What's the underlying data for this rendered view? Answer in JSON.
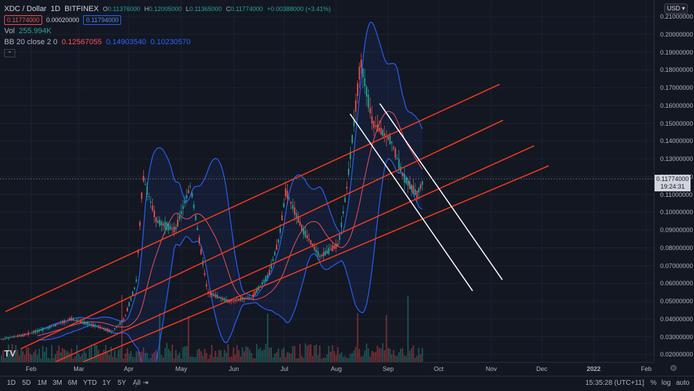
{
  "header": {
    "symbol": "XDC / Dollar",
    "interval": "1D",
    "exchange": "BITFINEX",
    "ohlc": {
      "o_label": "O",
      "o": "0.11376000",
      "h_label": "H",
      "h": "0.12005000",
      "l_label": "L",
      "l": "0.11365000",
      "c_label": "C",
      "c": "0.11774000",
      "change": "+0.00388000 (+3.41%)"
    },
    "bid": "0.11774000",
    "spread": "0.00020000",
    "ask": "0.11794000",
    "vol_label": "Vol",
    "vol_value": "255.994K",
    "bb_label": "BB 20 close 2 0",
    "bb_basis": "0.12567055",
    "bb_upper": "0.14903540",
    "bb_lower": "0.10230570",
    "collapse_icon": "chevron-up-icon"
  },
  "currency_button": "USD",
  "current_price": {
    "value": "0.11774000",
    "countdown": "19:24:31"
  },
  "price_axis": {
    "ticks": [
      "0.21000000",
      "0.20000000",
      "0.19000000",
      "0.18000000",
      "0.17000000",
      "0.16000000",
      "0.15000000",
      "0.14000000",
      "0.13000000",
      "0.12000000",
      "0.11000000",
      "0.10000000",
      "0.09000000",
      "0.08000000",
      "0.07000000",
      "0.06000000",
      "0.05000000",
      "0.04000000",
      "0.03000000",
      "0.02000000"
    ]
  },
  "time_axis": {
    "labels": [
      "Feb",
      "Mar",
      "Apr",
      "May",
      "Jun",
      "Jul",
      "Aug",
      "Sep",
      "Oct",
      "Nov",
      "Dec",
      "2022",
      "Feb"
    ]
  },
  "bottom_bar": {
    "ranges": [
      "1D",
      "5D",
      "1M",
      "3M",
      "6M",
      "YTD",
      "1Y",
      "5Y",
      "All"
    ],
    "clock": "15:35:28 (UTC+11)",
    "pct": "%",
    "log": "log",
    "auto": "auto"
  },
  "logo_text": "TV",
  "colors": {
    "background": "#131722",
    "up": "#26a69a",
    "down": "#ef5350",
    "bb_band": "#2962ff",
    "bb_basis": "#f7525f",
    "channel": "#f23c1f",
    "white_lines": "#ffffff"
  },
  "chart_data": {
    "type": "candlestick",
    "y_range": [
      0.015,
      0.215
    ],
    "price_series_approx": [
      [
        "2021-01-15",
        0.028
      ],
      [
        "2021-02-01",
        0.031
      ],
      [
        "2021-02-15",
        0.035
      ],
      [
        "2021-03-01",
        0.04
      ],
      [
        "2021-03-15",
        0.036
      ],
      [
        "2021-03-25",
        0.033
      ],
      [
        "2021-04-01",
        0.04
      ],
      [
        "2021-04-08",
        0.06
      ],
      [
        "2021-04-12",
        0.12
      ],
      [
        "2021-04-20",
        0.095
      ],
      [
        "2021-05-01",
        0.09
      ],
      [
        "2021-05-10",
        0.115
      ],
      [
        "2021-05-15",
        0.085
      ],
      [
        "2021-05-20",
        0.055
      ],
      [
        "2021-06-01",
        0.05
      ],
      [
        "2021-06-15",
        0.052
      ],
      [
        "2021-06-25",
        0.065
      ],
      [
        "2021-07-01",
        0.085
      ],
      [
        "2021-07-05",
        0.112
      ],
      [
        "2021-07-15",
        0.09
      ],
      [
        "2021-07-25",
        0.075
      ],
      [
        "2021-08-05",
        0.082
      ],
      [
        "2021-08-10",
        0.115
      ],
      [
        "2021-08-18",
        0.185
      ],
      [
        "2021-08-25",
        0.15
      ],
      [
        "2021-09-05",
        0.14
      ],
      [
        "2021-09-12",
        0.12
      ],
      [
        "2021-09-20",
        0.11
      ],
      [
        "2021-09-24",
        0.118
      ]
    ]
  }
}
